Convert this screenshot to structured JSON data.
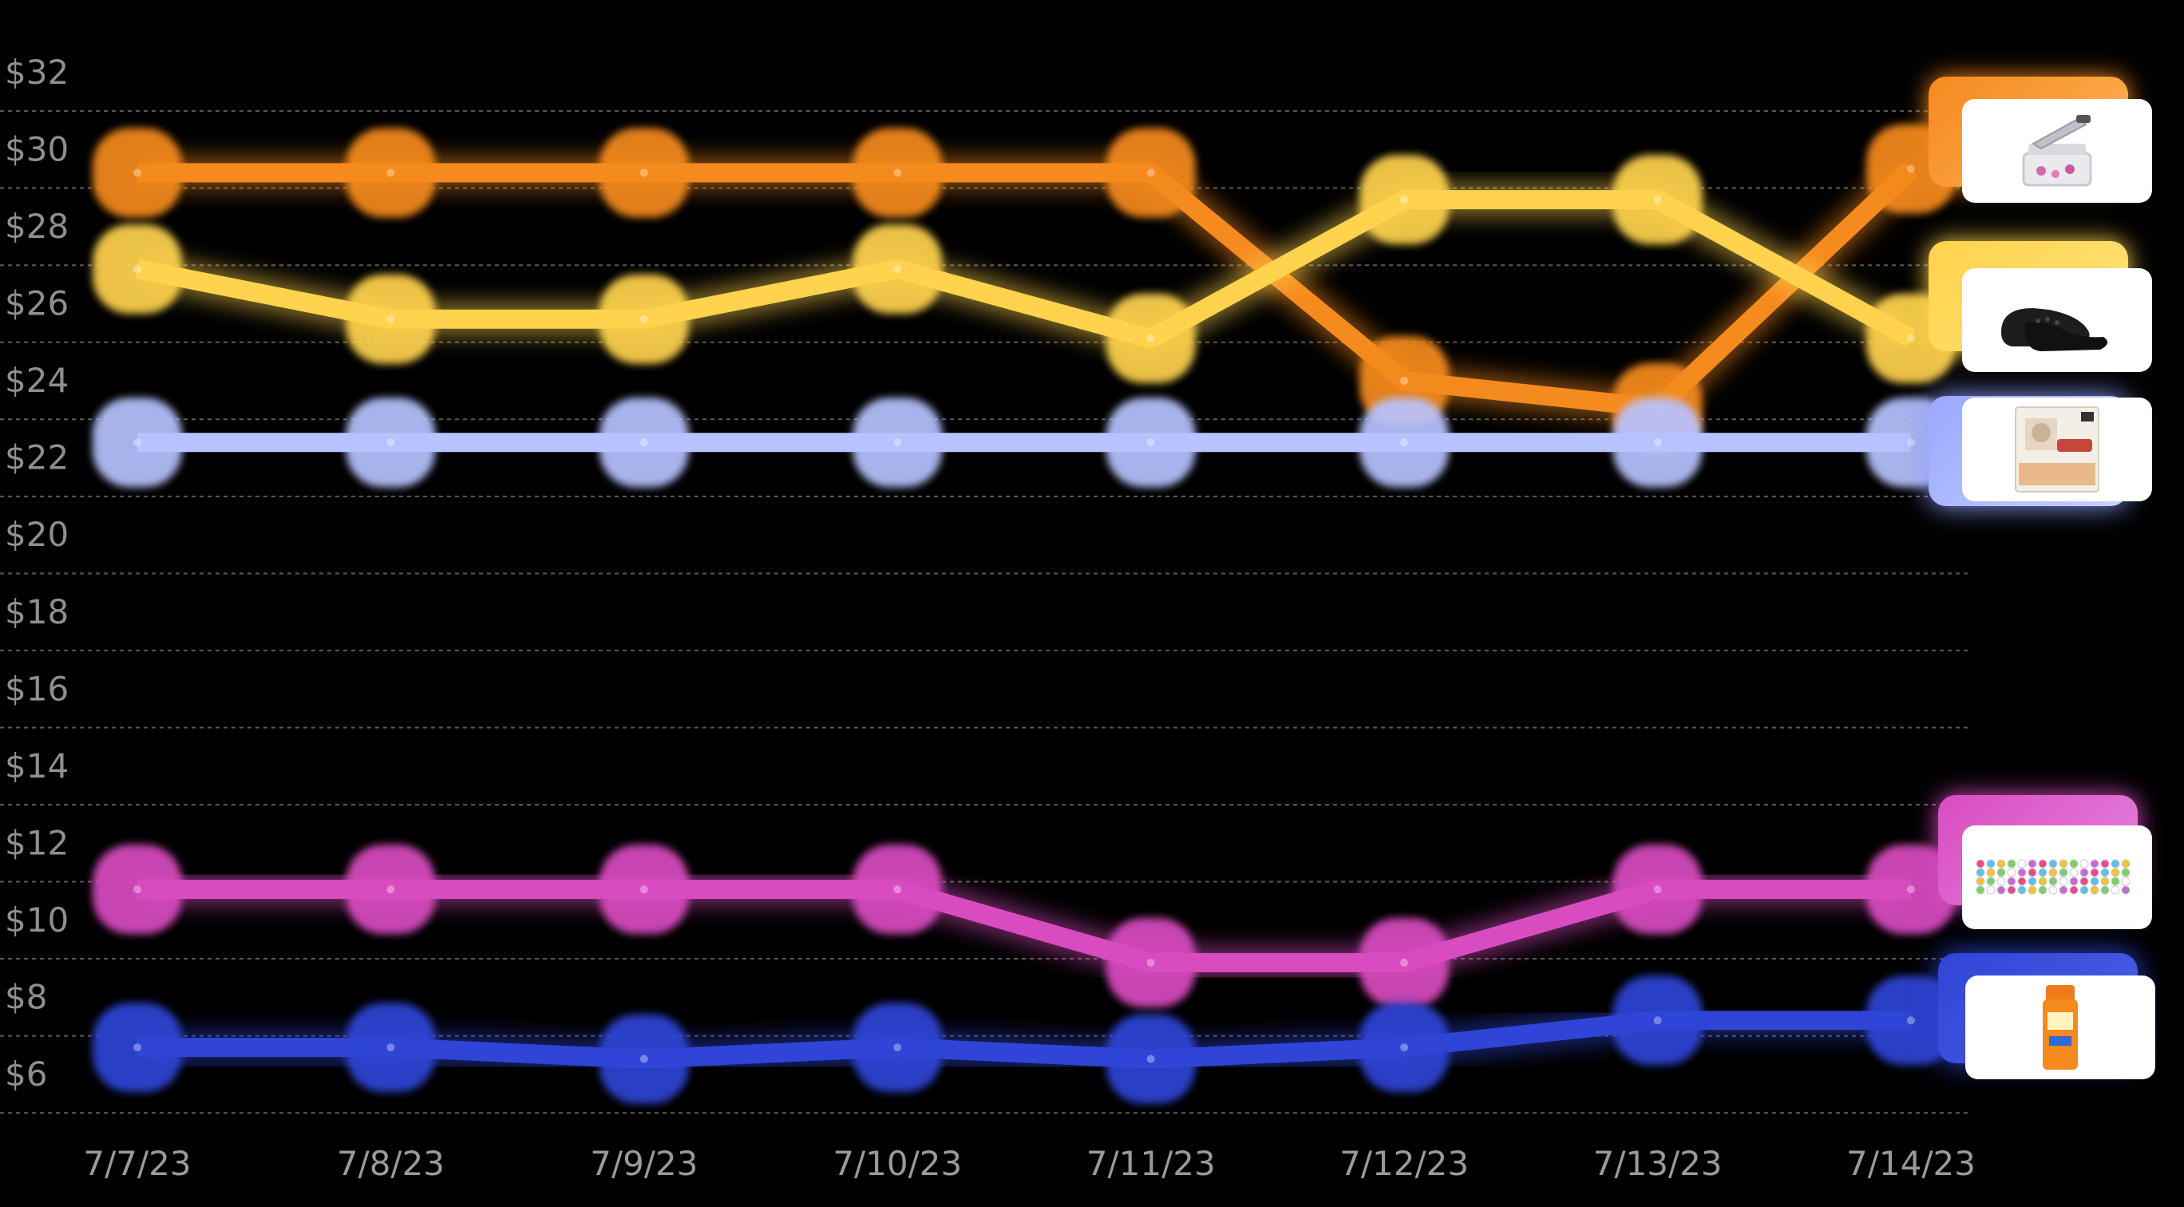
{
  "chart_data": {
    "type": "line",
    "categories": [
      "7/7/23",
      "7/8/23",
      "7/9/23",
      "7/10/23",
      "7/11/23",
      "7/12/23",
      "7/13/23",
      "7/14/23"
    ],
    "highlighted_categories": [
      "7/11/23",
      "7/12/23"
    ],
    "highlight_color": "#f58a1f",
    "y_tick_labels": [
      "$32",
      "$30",
      "$28",
      "$26",
      "$24",
      "$22",
      "$20",
      "$18",
      "$16",
      "$14",
      "$12",
      "$10",
      "$8",
      "$6"
    ],
    "ylim": [
      5.5,
      33
    ],
    "grid": true,
    "series": [
      {
        "product": "vegetable-chopper",
        "color": "#f58a1f",
        "values": [
          29.9,
          29.9,
          29.9,
          29.9,
          29.9,
          24.5,
          23.8,
          30.0
        ]
      },
      {
        "product": "black-clogs",
        "color": "#ffd34d",
        "values": [
          27.4,
          26.1,
          26.1,
          27.4,
          25.6,
          29.2,
          29.2,
          25.6
        ]
      },
      {
        "product": "cat-food-variety-pack",
        "color": "#b7c3ff",
        "values": [
          22.9,
          22.9,
          22.9,
          22.9,
          22.9,
          22.9,
          22.9,
          22.9
        ]
      },
      {
        "product": "bead-bracelets",
        "color": "#d94cc0",
        "values": [
          11.3,
          11.3,
          11.3,
          11.3,
          9.4,
          9.4,
          11.3,
          11.3
        ]
      },
      {
        "product": "sunscreen-spray",
        "color": "#2f45d6",
        "values": [
          7.2,
          7.2,
          6.9,
          7.2,
          6.9,
          7.2,
          7.9,
          7.9
        ]
      }
    ]
  }
}
